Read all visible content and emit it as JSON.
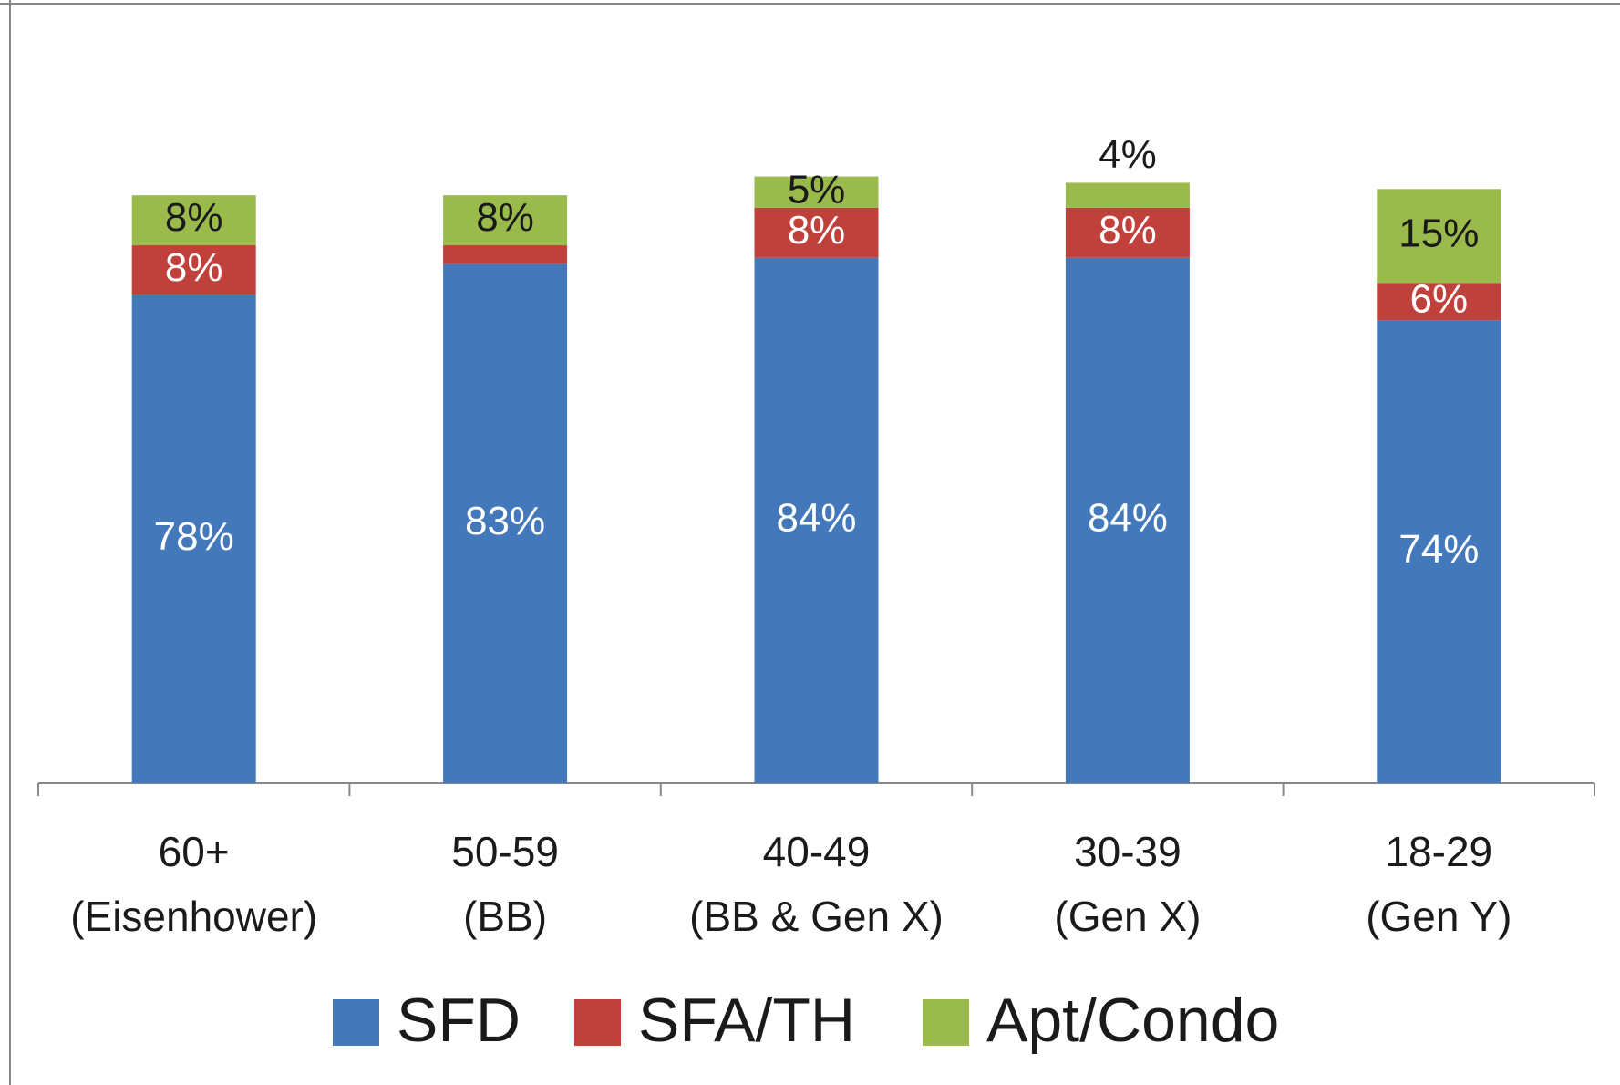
{
  "chart_data": {
    "type": "stacked_bar",
    "categories": [
      [
        "60+",
        "(Eisenhower)"
      ],
      [
        "50-59",
        "(BB)"
      ],
      [
        "40-49",
        "(BB & Gen X)"
      ],
      [
        "30-39",
        "(Gen X)"
      ],
      [
        "18-29",
        "(Gen Y)"
      ]
    ],
    "series": [
      {
        "name": "SFD",
        "color": "#4379bb",
        "values": [
          78,
          83,
          84,
          84,
          74
        ],
        "value_labels": [
          "78%",
          "83%",
          "84%",
          "84%",
          "74%"
        ]
      },
      {
        "name": "SFA/TH",
        "color": "#c0403c",
        "values": [
          8,
          3,
          8,
          8,
          6
        ],
        "value_labels": [
          "8%",
          null,
          "8%",
          "8%",
          "6%"
        ]
      },
      {
        "name": "Apt/Condo",
        "color": "#9aba4c",
        "values": [
          8,
          8,
          5,
          4,
          15
        ],
        "value_labels": [
          "8%",
          "8%",
          "5%",
          "4%",
          "15%"
        ]
      }
    ],
    "ylim": [
      0,
      100
    ],
    "legend": "bottom"
  }
}
